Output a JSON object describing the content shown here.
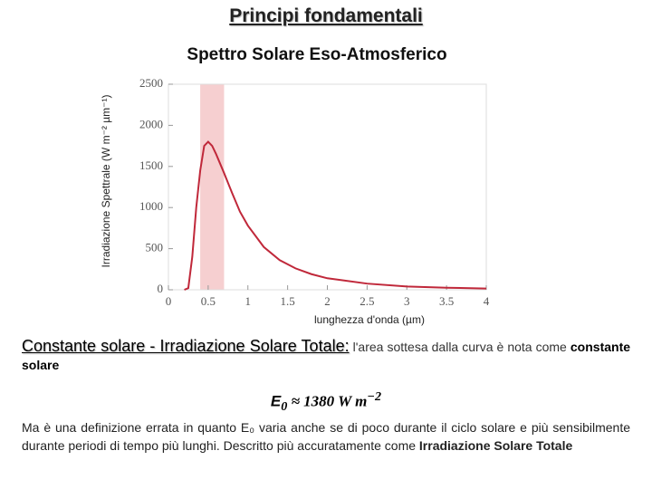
{
  "header": {
    "title": "Principi fondamentali"
  },
  "chart_data": {
    "type": "line",
    "title": "Spettro Solare Eso-Atmosferico",
    "y_label": "Irradiazione Spettrale     (W m⁻² µm⁻¹)",
    "x_label": "lunghezza d'onda (µm)",
    "x": [
      0.2,
      0.25,
      0.3,
      0.35,
      0.4,
      0.45,
      0.5,
      0.55,
      0.6,
      0.7,
      0.8,
      0.9,
      1.0,
      1.2,
      1.4,
      1.6,
      1.8,
      2.0,
      2.5,
      3.0,
      3.5,
      4.0
    ],
    "values": [
      0,
      20,
      400,
      1000,
      1450,
      1750,
      1800,
      1750,
      1650,
      1420,
      1180,
      950,
      780,
      520,
      360,
      260,
      190,
      140,
      75,
      40,
      25,
      15
    ],
    "color": "#c0283a",
    "highlight": {
      "xmin": 0.4,
      "xmax": 0.7,
      "color": "#f6cfd0"
    },
    "xlim": [
      0,
      4
    ],
    "xticks": [
      0,
      0.5,
      1,
      1.5,
      2,
      2.5,
      3,
      3.5,
      4
    ],
    "ylim": [
      0,
      2500
    ],
    "yticks": [
      0,
      500,
      1000,
      1500,
      2000,
      2500
    ]
  },
  "paragraph1": {
    "term": "Constante solare - Irradiazione Solare Totale:",
    "text": " l'area sottesa dalla curva è nota come ",
    "bold": "constante solare"
  },
  "formula": {
    "symbol": "E",
    "subscript": "0",
    "body": " ≈ 1380 W m",
    "superscript": "−2"
  },
  "paragraph2": {
    "text": "Ma è una definizione errata in quanto E₀ varia anche se di poco durante il ciclo solare e più sensibilmente durante periodi di tempo più lunghi. Descritto più accuratamente come ",
    "bold": "Irradiazione Solare Totale"
  }
}
